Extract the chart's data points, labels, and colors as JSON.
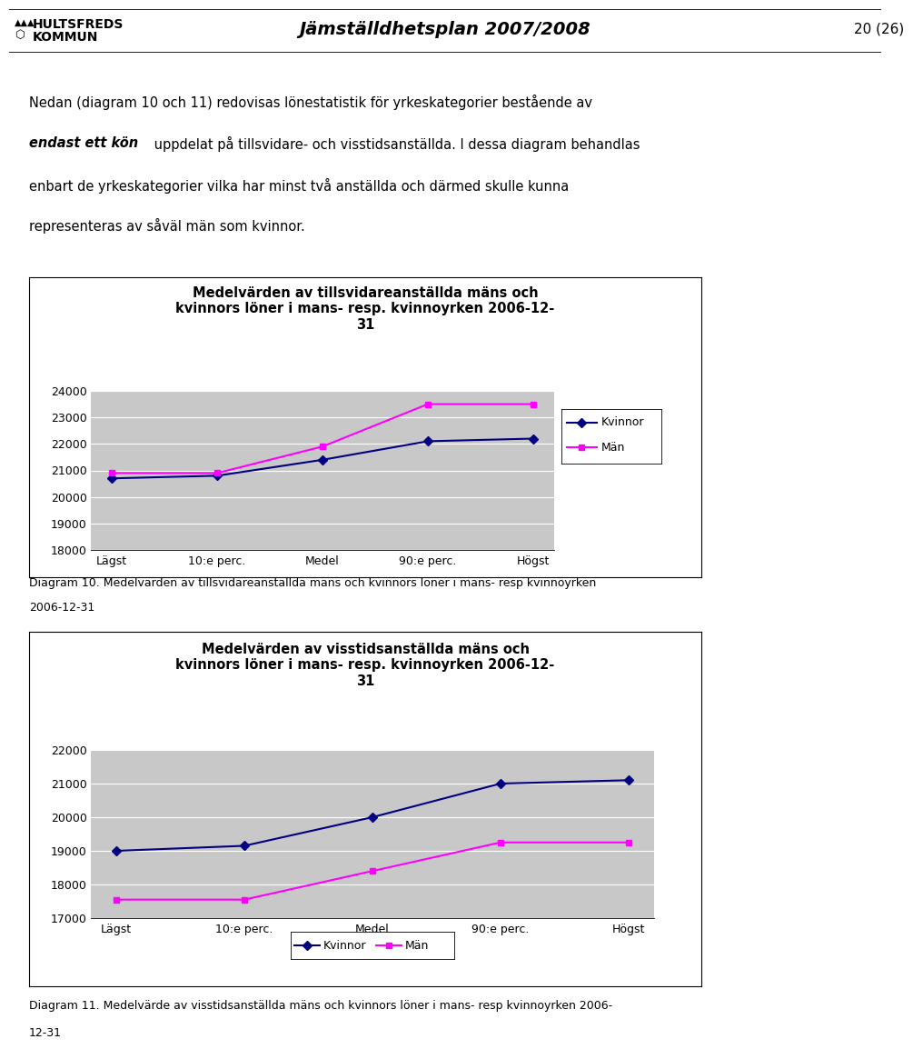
{
  "header_title": "Jämställdhetsplan 2007/2008",
  "header_page": "20 (26)",
  "header_org1": "HULTSFREDS",
  "header_org2": "KOMMUN",
  "intro_line1": "Nedan (diagram 10 och 11) redovisas lönestatistik för yrkeskategorier bestående av",
  "intro_italic": "endast ett kön",
  "intro_line2_rest": " uppdelat på tillsvidare- och visstidsanställda. I dessa diagram behandlas",
  "intro_line3": "enbart de yrkeskategorier vilka har minst två anställda och därmed skulle kunna",
  "intro_line4": "representeras av såväl män som kvinnor.",
  "chart1_title_line1": "Medelvärden av tillsvidareanställda mäns och",
  "chart1_title_line2": "kvinnors löner i mans- resp. kvinnoyrken 2006-12-",
  "chart1_title_line3": "31",
  "chart1_cats": [
    "Lägst",
    "10:e perc.",
    "Medel",
    "90:e perc.",
    "Högst"
  ],
  "chart1_kvinnor": [
    20700,
    20800,
    21400,
    22100,
    22200
  ],
  "chart1_man": [
    20900,
    20900,
    21900,
    23500,
    23500
  ],
  "chart1_ylim": [
    18000,
    24000
  ],
  "chart1_yticks": [
    18000,
    19000,
    20000,
    21000,
    22000,
    23000,
    24000
  ],
  "caption1_line1": "Diagram 10. Medelvärden av tillsvidareanställda mäns och kvinnors löner i mans- resp kvinnoyrken",
  "caption1_line2": "2006-12-31",
  "chart2_title_line1": "Medelvärden av visstidsanställda mäns och",
  "chart2_title_line2": "kvinnors löner i mans- resp. kvinnoyrken 2006-12-",
  "chart2_title_line3": "31",
  "chart2_cats": [
    "Lägst",
    "10:e perc.",
    "Medel",
    "90:e perc.",
    "Högst"
  ],
  "chart2_kvinnor": [
    19000,
    19150,
    20000,
    21000,
    21100
  ],
  "chart2_man": [
    17550,
    17550,
    18400,
    19250,
    19250
  ],
  "chart2_ylim": [
    17000,
    22000
  ],
  "chart2_yticks": [
    17000,
    18000,
    19000,
    20000,
    21000,
    22000
  ],
  "caption2_line1": "Diagram 11. Medelvärde av visstidsanställda mäns och kvinnors löner i mans- resp kvinnoyrken 2006-",
  "caption2_line2": "12-31",
  "color_kvinnor": "#000080",
  "color_man": "#FF00FF",
  "plot_bg": "#C8C8C8",
  "fig_bg": "#FFFFFF",
  "legend_kvinnor": "Kvinnor",
  "legend_man": "Män"
}
